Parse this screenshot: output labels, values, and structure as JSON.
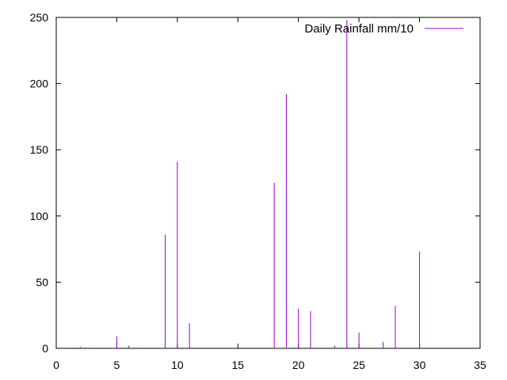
{
  "chart_data": {
    "type": "bar",
    "style": "impulses",
    "color": "#9400d3",
    "legend_position": "top-right",
    "grid": false,
    "xlim": [
      0,
      35
    ],
    "ylim": [
      0,
      250
    ],
    "xticks": [
      0,
      5,
      10,
      15,
      20,
      25,
      30,
      35
    ],
    "yticks": [
      0,
      50,
      100,
      150,
      200,
      250
    ],
    "series": [
      {
        "name": "Daily Rainfall mm/10",
        "x": [
          2,
          5,
          6,
          9,
          10,
          11,
          18,
          19,
          20,
          21,
          23,
          24,
          25,
          27,
          28,
          30
        ],
        "values": [
          1,
          9,
          2,
          86,
          141,
          19,
          125,
          192,
          30,
          28,
          2,
          248,
          12,
          5,
          32,
          73
        ]
      }
    ]
  }
}
